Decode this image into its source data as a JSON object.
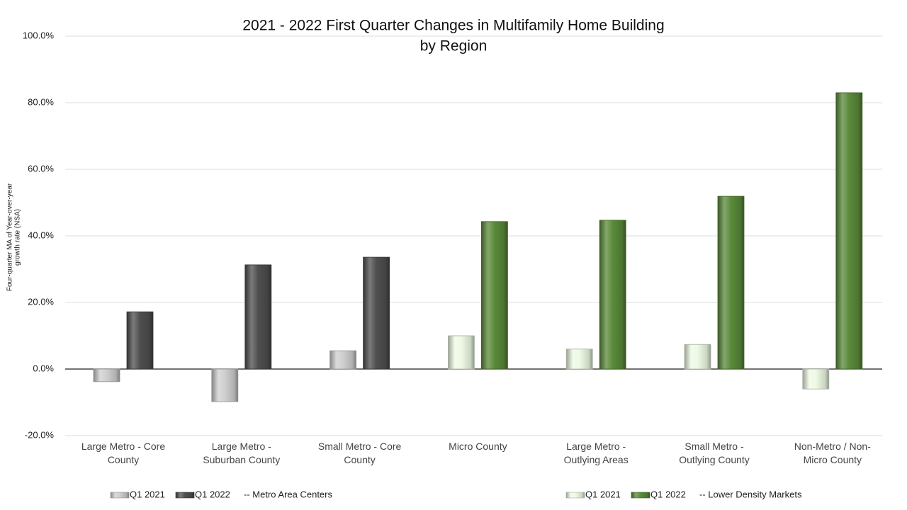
{
  "chart_data": {
    "type": "bar",
    "title": [
      "2021 - 2022 First Quarter Changes in Multifamily Home Building",
      "by Region"
    ],
    "y_label": [
      "Four-quarter MA of Year-over-year",
      "growth rate (NSA)"
    ],
    "categories": [
      "Large Metro - Core County",
      "Large Metro - Suburban County",
      "Small Metro - Core County",
      "Micro County",
      "Large Metro - Outlying Areas",
      "Small Metro - Outlying County",
      "Non-Metro / Non-Micro County"
    ],
    "series": [
      {
        "name": "Q1 2021",
        "values": [
          -3.8,
          -9.8,
          5.5,
          10.0,
          6.0,
          7.4,
          -6.0
        ],
        "colors": [
          "#cfcfcf",
          "#cfcfcf",
          "#cfcfcf",
          "#eefae4",
          "#eefae4",
          "#eefae4",
          "#eefae4"
        ]
      },
      {
        "name": "Q1 2022",
        "values": [
          17.2,
          31.3,
          33.6,
          44.3,
          44.7,
          51.9,
          83.0
        ],
        "colors": [
          "#4f4f4f",
          "#4f4f4f",
          "#4f4f4f",
          "#5b8a3a",
          "#5b8a3a",
          "#5b8a3a",
          "#5b8a3a"
        ]
      }
    ],
    "legends": [
      {
        "colors": [
          "#cfcfcf",
          "#4f4f4f"
        ],
        "note": "-- Metro Area Centers"
      },
      {
        "colors": [
          "#eefae4",
          "#5b8a3a"
        ],
        "note": "-- Lower Density Markets"
      }
    ],
    "ylim": [
      -20,
      100
    ],
    "yticks": [
      {
        "value": -20,
        "label": "-20.0%"
      },
      {
        "value": 0,
        "label": "0.0%"
      },
      {
        "value": 20,
        "label": "20.0%"
      },
      {
        "value": 40,
        "label": "40.0%"
      },
      {
        "value": 60,
        "label": "60.0%"
      },
      {
        "value": 80,
        "label": "80.0%"
      },
      {
        "value": 100,
        "label": "100.0%"
      }
    ],
    "grid": true
  }
}
